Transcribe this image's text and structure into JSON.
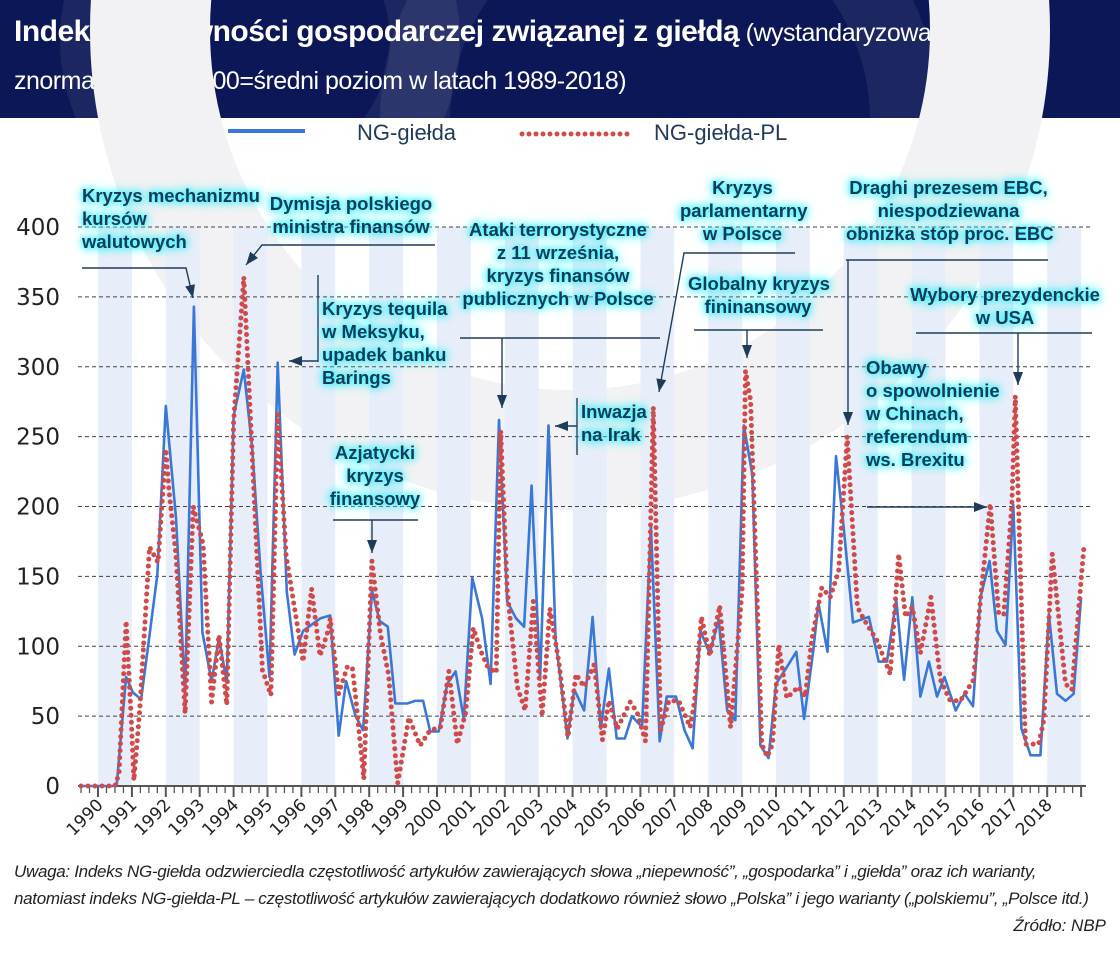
{
  "header": {
    "title_bold": "Indeks niepewności gospodarczej związanej z giełdą",
    "title_rest": " (wystandaryzowany i znormalizowany: 100=średni poziom w latach 1989-2018)"
  },
  "annotations": [
    {
      "text": "Kryzys mechanizmu\nkursów\nwalutowych"
    },
    {
      "text": "Dymisja polskiego\nministra finansów"
    },
    {
      "text": "Kryzys tequila\nw Meksyku,\nupadek banku\nBarings"
    },
    {
      "text": "Azjatycki\nkryzys\nfinansowy"
    },
    {
      "text": "Ataki terrorystyczne\nz 11 września,\nkryzys finansów\npublicznych w Polsce"
    },
    {
      "text": "Inwazja\nna Irak"
    },
    {
      "text": "Kryzys\nparlamentarny\nw Polsce"
    },
    {
      "text": "Globalny kryzys\nfininansowy"
    },
    {
      "text": "Draghi prezesem EBC,\nniespodziewana\nobniżka stóp proc. EBC"
    },
    {
      "text": "Wybory prezydenckie\nw USA"
    },
    {
      "text": "Obawy\no spowolnienie\nw Chinach,\nreferendum\nws. Brexitu"
    }
  ],
  "footer": {
    "note": "Uwaga: Indeks NG-giełda odzwierciedla częstotliwość artykułów zawierających słowa „niepewność”, „gospodarka” i „giełda” oraz ich warianty, natomiast indeks NG-giełda-PL – częstotliwość artykułów zawierających dodatkowo również słowo „Polska” i jego warianty („polskiemu”, „Polsce itd.)",
    "source": "Źródło: NBP"
  },
  "colors": {
    "header_bg": "#0b1757",
    "series_blue": "#3a78d8",
    "series_red": "#d04a4a",
    "stripe": "#e8eef9",
    "annotation_glow": "#33eeff"
  },
  "chart_data": {
    "type": "line",
    "title": "Indeks niepewności gospodarczej związanej z giełdą (wystandaryzowany i znormalizowany: 100=średni poziom w latach 1989-2018)",
    "ylim": [
      0,
      400
    ],
    "yticks": [
      0,
      50,
      100,
      150,
      200,
      250,
      300,
      350,
      400
    ],
    "xticks": [
      "1990",
      "1991",
      "1992",
      "1993",
      "1994",
      "1995",
      "1996",
      "1997",
      "1998",
      "1999",
      "2000",
      "2001",
      "2002",
      "2003",
      "2004",
      "2005",
      "2006",
      "2007",
      "2008",
      "2009",
      "2010",
      "2011",
      "2012",
      "2013",
      "2014",
      "2015",
      "2016",
      "2017",
      "2018"
    ],
    "grid": "horizontal dashed",
    "legend_position": "top",
    "series": [
      {
        "name": "NG-giełda",
        "style": "solid",
        "color": "#3a78d8",
        "x": [
          1989.5,
          1990.55,
          1990.83,
          1991.03,
          1991.27,
          1991.5,
          1991.75,
          1992.0,
          1992.3,
          1992.57,
          1992.83,
          1993.08,
          1993.35,
          1993.57,
          1993.8,
          1994.0,
          1994.3,
          1994.55,
          1994.8,
          1995.06,
          1995.3,
          1995.57,
          1995.8,
          1996.05,
          1996.56,
          1996.85,
          1997.1,
          1997.32,
          1997.6,
          1997.82,
          1998.08,
          1998.31,
          1998.55,
          1998.77,
          1999.12,
          1999.36,
          1999.59,
          1999.8,
          2000.05,
          2000.3,
          2000.55,
          2000.79,
          2001.04,
          2001.33,
          2001.58,
          2001.83,
          2002.07,
          2002.33,
          2002.57,
          2002.79,
          2003.04,
          2003.29,
          2003.5,
          2003.85,
          2004.05,
          2004.34,
          2004.59,
          2004.83,
          2005.07,
          2005.3,
          2005.54,
          2005.75,
          2006.05,
          2006.31,
          2006.57,
          2006.78,
          2007.05,
          2007.3,
          2007.54,
          2007.77,
          2008.04,
          2008.31,
          2008.56,
          2008.8,
          2009.05,
          2009.3,
          2009.54,
          2009.78,
          2010.0,
          2010.32,
          2010.6,
          2010.83,
          2011.1,
          2011.25,
          2011.52,
          2011.77,
          2012.0,
          2012.27,
          2012.74,
          2013.03,
          2013.27,
          2013.55,
          2013.78,
          2014.02,
          2014.26,
          2014.51,
          2014.75,
          2014.97,
          2015.3,
          2015.56,
          2015.81,
          2016.03,
          2016.3,
          2016.52,
          2016.77,
          2017.0,
          2017.24,
          2017.51,
          2017.8,
          2018.05,
          2018.29,
          2018.54,
          2018.78,
          2019.0
        ],
        "y": [
          0,
          0,
          78,
          67,
          62,
          104,
          151,
          272,
          192,
          66,
          343,
          110,
          75,
          106,
          74,
          265,
          298,
          242,
          152,
          78,
          303,
          139,
          94,
          111,
          120,
          122,
          36,
          75,
          50,
          40,
          140,
          118,
          114,
          59,
          59,
          61,
          61,
          39,
          39,
          73,
          82,
          48,
          149,
          120,
          73,
          262,
          132,
          120,
          114,
          215,
          76,
          258,
          105,
          34,
          69,
          54,
          121,
          41,
          84,
          34,
          34,
          50,
          42,
          186,
          32,
          64,
          64,
          40,
          27,
          111,
          95,
          119,
          54,
          47,
          258,
          223,
          29,
          20,
          73,
          85,
          96,
          48,
          97,
          131,
          96,
          236,
          184,
          117,
          121,
          89,
          89,
          133,
          76,
          135,
          64,
          89,
          64,
          78,
          54,
          66,
          57,
          135,
          161,
          111,
          101,
          201,
          41,
          22,
          22,
          123,
          66,
          61,
          66,
          135
        ]
      },
      {
        "name": "NG-giełda-PL",
        "style": "dotted",
        "color": "#d04a4a",
        "x": [
          1989.5,
          1990.5,
          1990.62,
          1990.83,
          1990.98,
          1991.06,
          1991.23,
          1991.52,
          1991.77,
          1992.0,
          1992.1,
          1992.3,
          1992.57,
          1992.81,
          1993.1,
          1993.35,
          1993.57,
          1993.8,
          1994.0,
          1994.3,
          1994.5,
          1994.85,
          1995.1,
          1995.3,
          1995.55,
          1996.05,
          1996.3,
          1996.55,
          1996.8,
          1996.85,
          1997.1,
          1997.35,
          1997.5,
          1997.6,
          1997.84,
          1998.08,
          1998.33,
          1998.57,
          1998.84,
          1999.17,
          1999.5,
          1999.8,
          2000.1,
          2000.35,
          2000.6,
          2000.84,
          2001.07,
          2001.3,
          2001.5,
          2001.75,
          2001.88,
          2002.07,
          2002.37,
          2002.6,
          2002.84,
          2003.1,
          2003.33,
          2003.6,
          2003.86,
          2004.1,
          2004.34,
          2004.64,
          2004.88,
          2005.07,
          2005.32,
          2005.7,
          2005.9,
          2006.15,
          2006.38,
          2006.6,
          2006.84,
          2007.13,
          2007.47,
          2007.6,
          2007.8,
          2008.05,
          2008.34,
          2008.66,
          2009.0,
          2009.1,
          2009.25,
          2009.58,
          2009.74,
          2009.9,
          2010.08,
          2010.32,
          2010.66,
          2010.86,
          2011.05,
          2011.35,
          2011.6,
          2011.85,
          2012.1,
          2012.4,
          2012.6,
          2012.98,
          2013.37,
          2013.62,
          2013.82,
          2014.02,
          2014.26,
          2014.57,
          2014.85,
          2015.14,
          2015.44,
          2015.83,
          2016.03,
          2016.32,
          2016.57,
          2016.72,
          2016.96,
          2017.06,
          2017.36,
          2017.75,
          2017.9,
          2018.15,
          2018.54,
          2018.73,
          2019.08
        ],
        "y": [
          0,
          0,
          9,
          118,
          49,
          4,
          54,
          171,
          160,
          241,
          210,
          165,
          52,
          200,
          173,
          60,
          108,
          58,
          261,
          364,
          263,
          83,
          65,
          266,
          165,
          89,
          141,
          93,
          112,
          120,
          66,
          85,
          85,
          64,
          5,
          161,
          109,
          80,
          2,
          49,
          29,
          40,
          42,
          82,
          30,
          52,
          113,
          96,
          85,
          81,
          254,
          140,
          71,
          54,
          132,
          50,
          127,
          88,
          35,
          80,
          71,
          87,
          33,
          61,
          41,
          60,
          53,
          32,
          271,
          40,
          61,
          61,
          42,
          61,
          121,
          93,
          129,
          42,
          140,
          297,
          276,
          30,
          21,
          30,
          101,
          63,
          71,
          64,
          104,
          142,
          135,
          154,
          250,
          128,
          119,
          104,
          80,
          166,
          121,
          128,
          95,
          135,
          76,
          61,
          61,
          76,
          133,
          202,
          123,
          123,
          202,
          279,
          30,
          30,
          47,
          166,
          73,
          69,
          170
        ]
      }
    ]
  }
}
